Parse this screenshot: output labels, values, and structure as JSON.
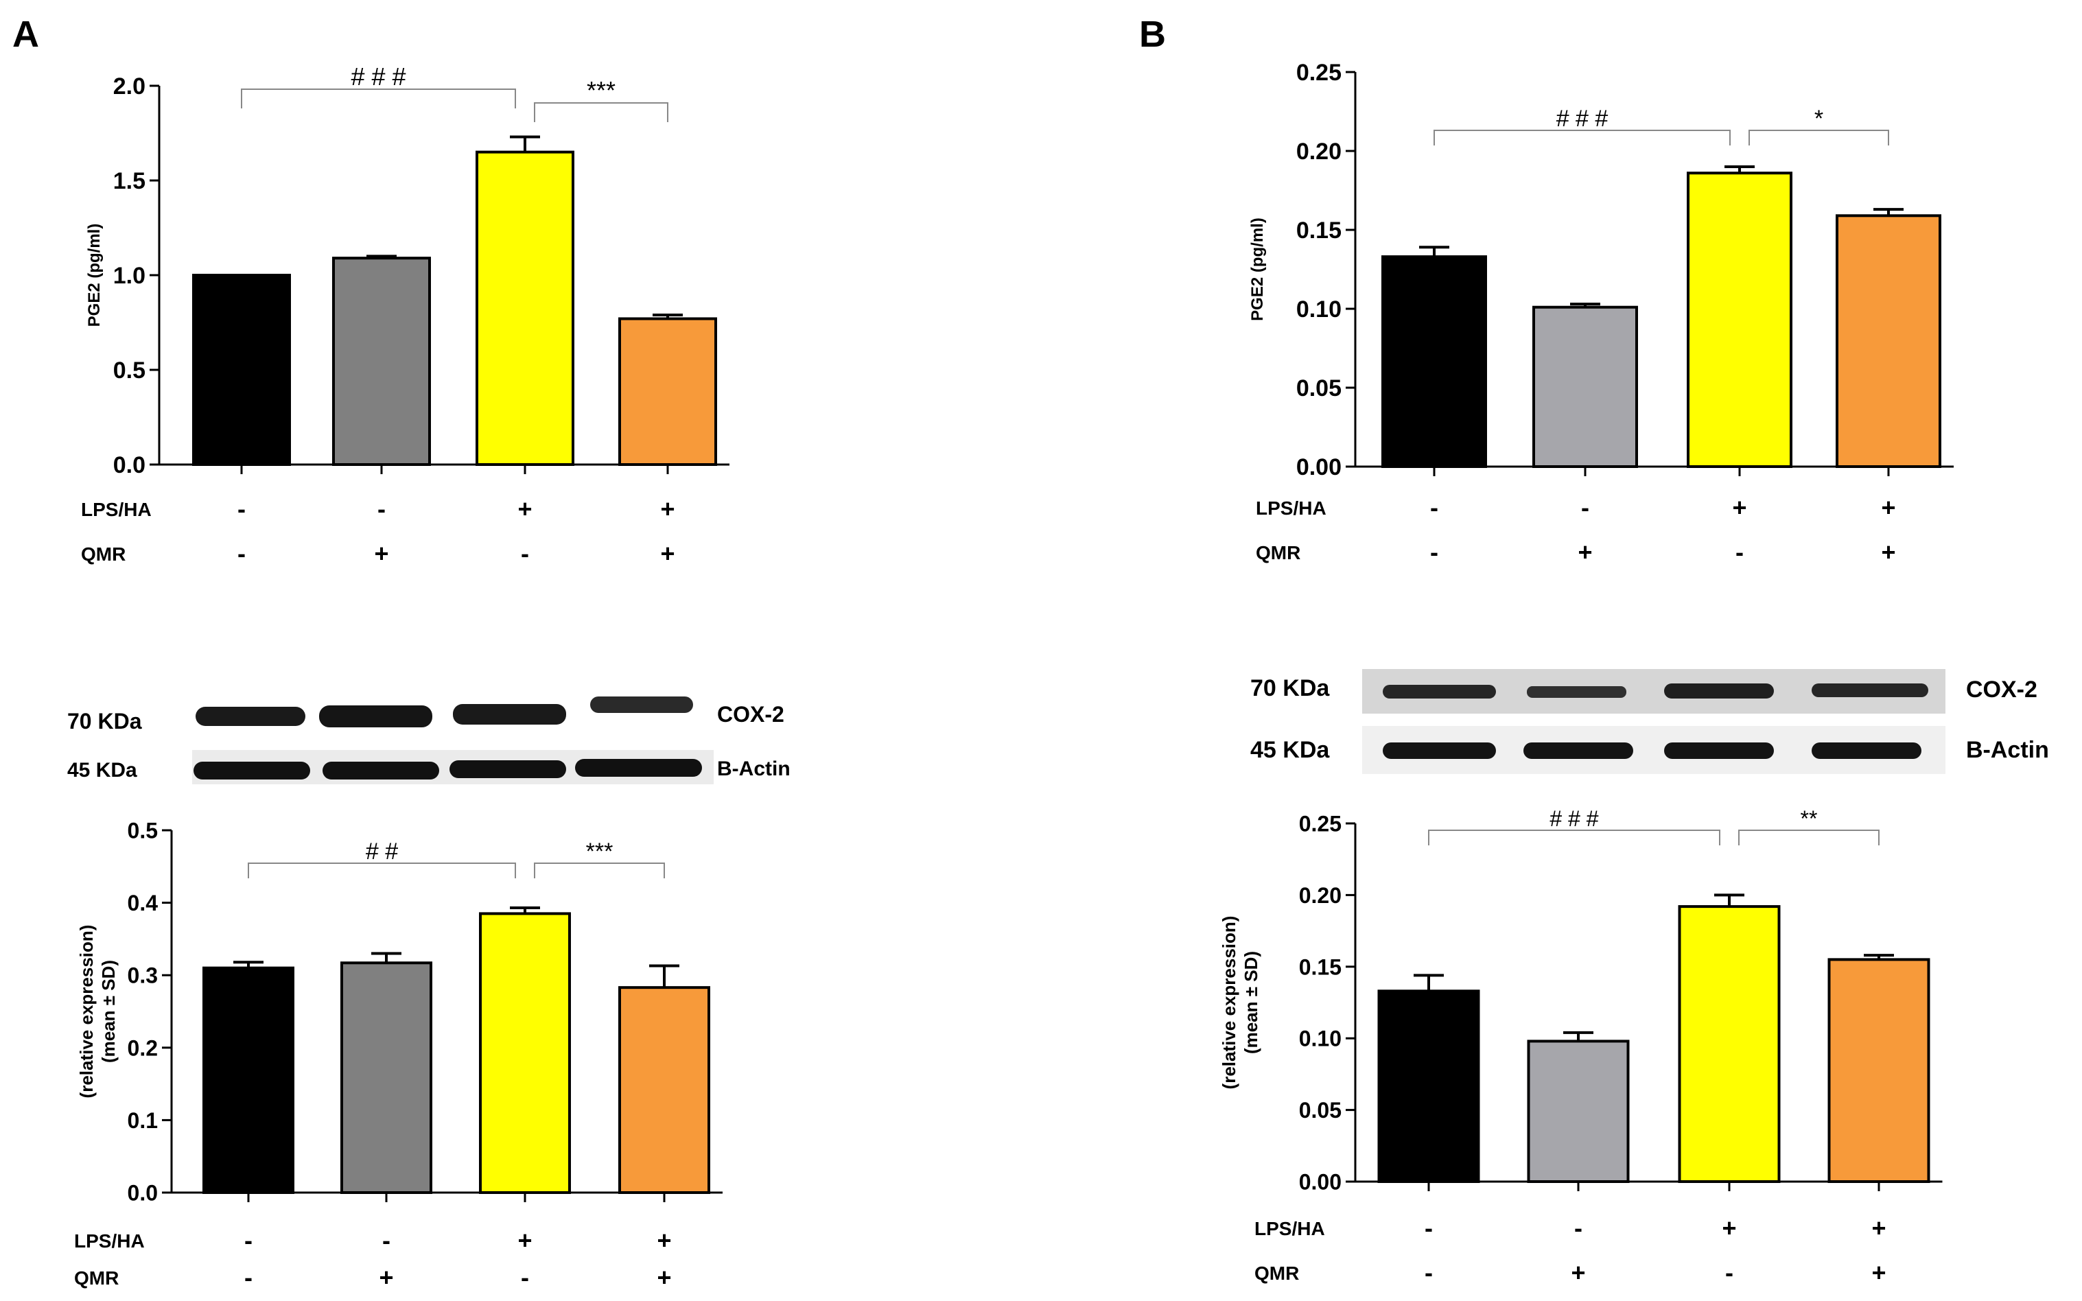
{
  "panel_labels": [
    "A",
    "B"
  ],
  "treatments": {
    "rows": [
      {
        "label": "LPS/HA",
        "signs": [
          "-",
          "-",
          "+",
          "+"
        ]
      },
      {
        "label": "QMR",
        "signs": [
          "-",
          "+",
          "-",
          "+"
        ]
      }
    ]
  },
  "blots": [
    {
      "bands": [
        {
          "kda": "70 KDa",
          "protein": "COX-2"
        },
        {
          "kda": "45 KDa",
          "protein": "B-Actin"
        }
      ]
    },
    {
      "bands": [
        {
          "kda": "70 KDa",
          "protein": "COX-2"
        },
        {
          "kda": "45 KDa",
          "protein": "B-Actin"
        }
      ]
    }
  ],
  "colors": {
    "bars_a": [
      "#000000",
      "#808080",
      "#ffff00",
      "#f79a3a"
    ],
    "bars_b": [
      "#000000",
      "#a6a6ab",
      "#ffff00",
      "#f79a3a"
    ]
  },
  "chart_data": [
    {
      "type": "bar",
      "panel": "A",
      "title": "",
      "xlabel": "",
      "ylabel": "PGE2 (pg/ml)",
      "ylim": [
        0,
        2.0
      ],
      "yticks": [
        "0.0",
        "0.5",
        "1.0",
        "1.5",
        "2.0"
      ],
      "ytick_values": [
        0,
        0.5,
        1.0,
        1.5,
        2.0
      ],
      "values": [
        1.0,
        1.09,
        1.65,
        0.77
      ],
      "errors": [
        0.0,
        0.01,
        0.08,
        0.02
      ],
      "significance": [
        {
          "label": "# # #",
          "from": 0,
          "to": 2
        },
        {
          "label": "***",
          "from": 2,
          "to": 3
        }
      ]
    },
    {
      "type": "bar",
      "panel": "A",
      "title": "",
      "xlabel": "",
      "ylabel": [
        "(relative expression)",
        "(mean ± SD)"
      ],
      "ylim": [
        0,
        0.5
      ],
      "yticks": [
        "0.0",
        "0.1",
        "0.2",
        "0.3",
        "0.4",
        "0.5"
      ],
      "ytick_values": [
        0,
        0.1,
        0.2,
        0.3,
        0.4,
        0.5
      ],
      "values": [
        0.31,
        0.317,
        0.385,
        0.283
      ],
      "errors": [
        0.008,
        0.013,
        0.008,
        0.03
      ],
      "significance": [
        {
          "label": "# #",
          "from": 0,
          "to": 2
        },
        {
          "label": "***",
          "from": 2,
          "to": 3
        }
      ]
    },
    {
      "type": "bar",
      "panel": "B",
      "title": "",
      "xlabel": "",
      "ylabel": "PGE2 (pg/ml)",
      "ylim": [
        0,
        0.25
      ],
      "yticks": [
        "0.00",
        "0.05",
        "0.10",
        "0.15",
        "0.20",
        "0.25"
      ],
      "ytick_values": [
        0,
        0.05,
        0.1,
        0.15,
        0.2,
        0.25
      ],
      "values": [
        0.133,
        0.101,
        0.186,
        0.159
      ],
      "errors": [
        0.006,
        0.002,
        0.004,
        0.004
      ],
      "significance": [
        {
          "label": "# # #",
          "from": 0,
          "to": 2
        },
        {
          "label": "*",
          "from": 2,
          "to": 3
        }
      ]
    },
    {
      "type": "bar",
      "panel": "B",
      "title": "",
      "xlabel": "",
      "ylabel": [
        "(relative expression)",
        "(mean ± SD)"
      ],
      "ylim": [
        0,
        0.25
      ],
      "yticks": [
        "0.00",
        "0.05",
        "0.10",
        "0.15",
        "0.20",
        "0.25"
      ],
      "ytick_values": [
        0,
        0.05,
        0.1,
        0.15,
        0.2,
        0.25
      ],
      "values": [
        0.133,
        0.098,
        0.192,
        0.155
      ],
      "errors": [
        0.011,
        0.006,
        0.008,
        0.003
      ],
      "significance": [
        {
          "label": "# # #",
          "from": 0,
          "to": 2
        },
        {
          "label": "**",
          "from": 2,
          "to": 3
        }
      ]
    }
  ]
}
